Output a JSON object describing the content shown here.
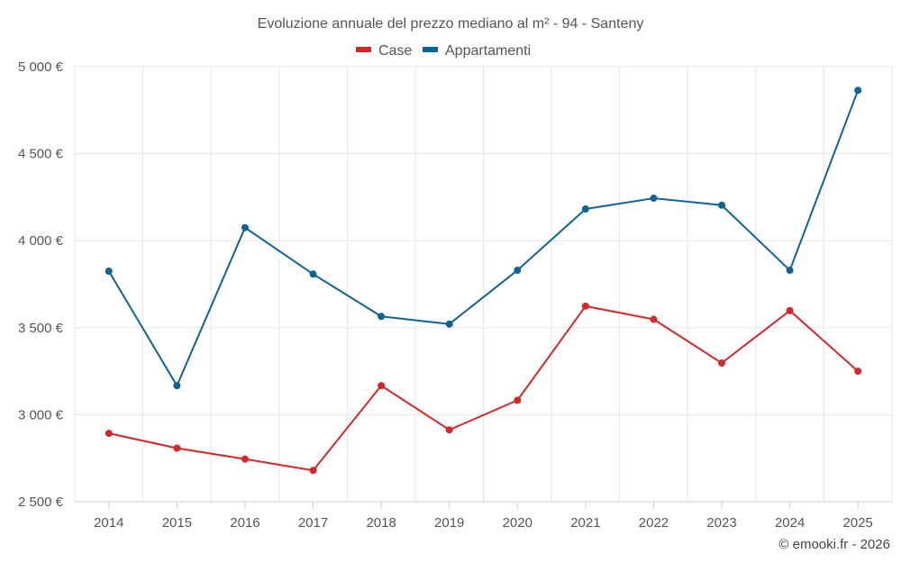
{
  "chart_data": {
    "type": "line",
    "title": "Evoluzione annuale del prezzo mediano al m² - 94 - Santeny",
    "categories": [
      "2014",
      "2015",
      "2016",
      "2017",
      "2018",
      "2019",
      "2020",
      "2021",
      "2022",
      "2023",
      "2024",
      "2025"
    ],
    "series": [
      {
        "name": "Case",
        "color": "#d62728",
        "values": [
          2893,
          2808,
          2745,
          2680,
          3167,
          2913,
          3083,
          3624,
          3548,
          3297,
          3598,
          3250
        ]
      },
      {
        "name": "Appartamenti",
        "color": "#0d6396",
        "values": [
          3825,
          3167,
          4075,
          3808,
          3565,
          3521,
          3830,
          4182,
          4244,
          4204,
          3830,
          4864
        ]
      }
    ],
    "ylim": [
      2500,
      5000
    ],
    "yticks": [
      2500,
      3000,
      3500,
      4000,
      4500,
      5000
    ],
    "ytick_labels": [
      "2 500 €",
      "3 000 €",
      "3 500 €",
      "4 000 €",
      "4 500 €",
      "5 000 €"
    ],
    "xlabel": "",
    "ylabel": "",
    "grid": true,
    "legend_position": "top-center"
  },
  "credit": "© emooki.fr - 2026"
}
